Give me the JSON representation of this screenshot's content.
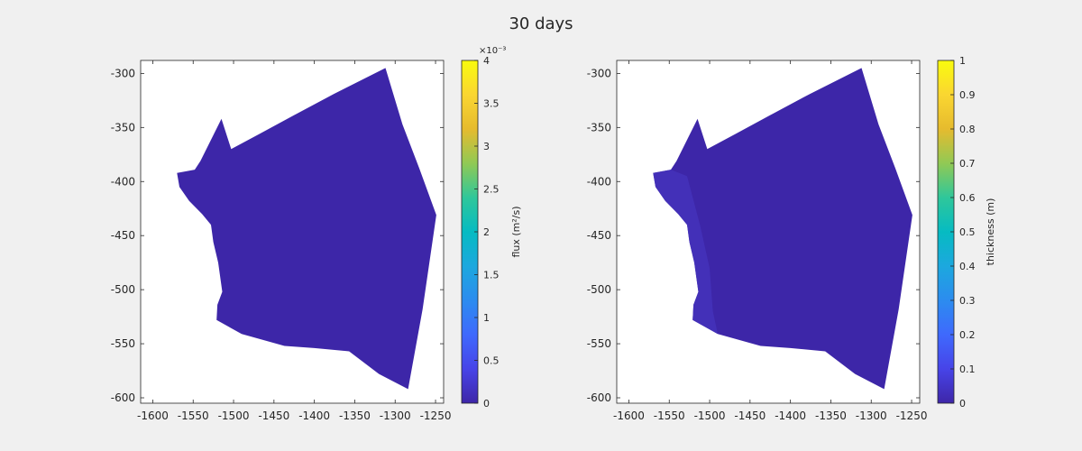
{
  "figure": {
    "title": "30 days"
  },
  "colors": {
    "background": "#f0f0f0",
    "axes_bg": "#ffffff",
    "region_fill": "#3d26a8",
    "region_shade": "#4331b8"
  },
  "chart_data": [
    {
      "type": "heatmap",
      "panel": "left",
      "title": "",
      "xlabel": "",
      "ylabel": "",
      "xlim": [
        -1615,
        -1240
      ],
      "ylim": [
        -605,
        -288
      ],
      "xticks": [
        -1600,
        -1550,
        -1500,
        -1450,
        -1400,
        -1350,
        -1300,
        -1250
      ],
      "yticks": [
        -300,
        -350,
        -400,
        -450,
        -500,
        -550,
        -600
      ],
      "grid": false,
      "region_value": 0,
      "region_outline": [
        [
          -1570,
          -392
        ],
        [
          -1548,
          -389
        ],
        [
          -1541,
          -381
        ],
        [
          -1515,
          -342
        ],
        [
          -1503,
          -370
        ],
        [
          -1468,
          -356
        ],
        [
          -1421,
          -337
        ],
        [
          -1376,
          -319
        ],
        [
          -1312,
          -295
        ],
        [
          -1291,
          -347
        ],
        [
          -1270,
          -388
        ],
        [
          -1249,
          -431
        ],
        [
          -1266,
          -518
        ],
        [
          -1284,
          -592
        ],
        [
          -1320,
          -578
        ],
        [
          -1357,
          -557
        ],
        [
          -1400,
          -554
        ],
        [
          -1437,
          -552
        ],
        [
          -1490,
          -541
        ],
        [
          -1521,
          -528
        ],
        [
          -1520,
          -514
        ],
        [
          -1514,
          -502
        ],
        [
          -1519,
          -475
        ],
        [
          -1525,
          -456
        ],
        [
          -1528,
          -440
        ],
        [
          -1539,
          -430
        ],
        [
          -1555,
          -418
        ],
        [
          -1567,
          -405
        ]
      ],
      "colorbar": {
        "label": "flux (m²/s)",
        "exponent": "×10⁻³",
        "range": [
          0,
          4
        ],
        "ticks": [
          "0",
          "0.5",
          "1",
          "1.5",
          "2",
          "2.5",
          "3",
          "3.5",
          "4"
        ],
        "colormap": "parula"
      }
    },
    {
      "type": "heatmap",
      "panel": "right",
      "title": "",
      "xlabel": "",
      "ylabel": "",
      "xlim": [
        -1615,
        -1240
      ],
      "ylim": [
        -605,
        -288
      ],
      "xticks": [
        -1600,
        -1550,
        -1500,
        -1450,
        -1400,
        -1350,
        -1300,
        -1250
      ],
      "yticks": [
        -300,
        -350,
        -400,
        -450,
        -500,
        -550,
        -600
      ],
      "grid": false,
      "region_value": 0.03,
      "region_outline": [
        [
          -1570,
          -392
        ],
        [
          -1548,
          -389
        ],
        [
          -1541,
          -381
        ],
        [
          -1515,
          -342
        ],
        [
          -1503,
          -370
        ],
        [
          -1468,
          -356
        ],
        [
          -1421,
          -337
        ],
        [
          -1376,
          -319
        ],
        [
          -1312,
          -295
        ],
        [
          -1291,
          -347
        ],
        [
          -1270,
          -388
        ],
        [
          -1249,
          -431
        ],
        [
          -1266,
          -518
        ],
        [
          -1284,
          -592
        ],
        [
          -1320,
          -578
        ],
        [
          -1357,
          -557
        ],
        [
          -1400,
          -554
        ],
        [
          -1437,
          -552
        ],
        [
          -1490,
          -541
        ],
        [
          -1521,
          -528
        ],
        [
          -1520,
          -514
        ],
        [
          -1514,
          -502
        ],
        [
          -1519,
          -475
        ],
        [
          -1525,
          -456
        ],
        [
          -1528,
          -440
        ],
        [
          -1539,
          -430
        ],
        [
          -1555,
          -418
        ],
        [
          -1567,
          -405
        ]
      ],
      "colorbar": {
        "label": "thickness (m)",
        "exponent": "",
        "range": [
          0,
          1
        ],
        "ticks": [
          "0",
          "0.1",
          "0.2",
          "0.3",
          "0.4",
          "0.5",
          "0.6",
          "0.7",
          "0.8",
          "0.9",
          "1"
        ],
        "colormap": "parula"
      }
    }
  ]
}
